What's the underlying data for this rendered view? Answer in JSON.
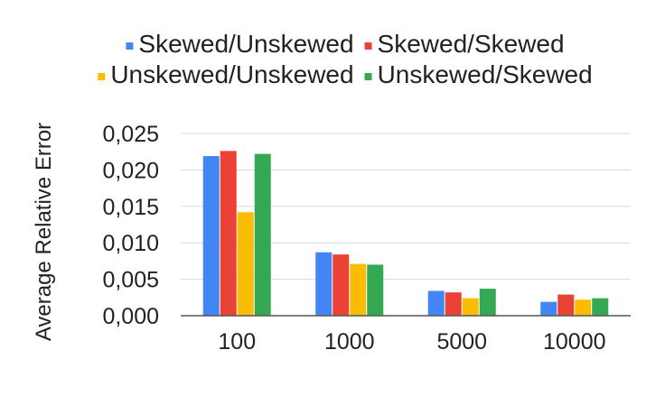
{
  "chart_data": {
    "type": "bar",
    "title": "",
    "xlabel": "",
    "ylabel": "Average Relative Error",
    "categories": [
      "100",
      "1000",
      "5000",
      "10000"
    ],
    "series": [
      {
        "name": "Skewed/Unskewed",
        "color": "#4285f4",
        "values": [
          0.0219,
          0.0087,
          0.0034,
          0.0019
        ]
      },
      {
        "name": "Skewed/Skewed",
        "color": "#ea4335",
        "values": [
          0.0226,
          0.0084,
          0.0032,
          0.0029
        ]
      },
      {
        "name": "Unskewed/Unskewed",
        "color": "#fbbc04",
        "values": [
          0.0142,
          0.0071,
          0.0024,
          0.0022
        ]
      },
      {
        "name": "Unskewed/Skewed",
        "color": "#34a853",
        "values": [
          0.0222,
          0.007,
          0.0037,
          0.0024
        ]
      }
    ],
    "ylim": [
      0,
      0.025
    ],
    "yticks": [
      0,
      0.005,
      0.01,
      0.015,
      0.02,
      0.025
    ],
    "ytick_labels": [
      "0,000",
      "0,005",
      "0,010",
      "0,015",
      "0,020",
      "0,025"
    ],
    "grid": true,
    "legend_position": "top"
  }
}
